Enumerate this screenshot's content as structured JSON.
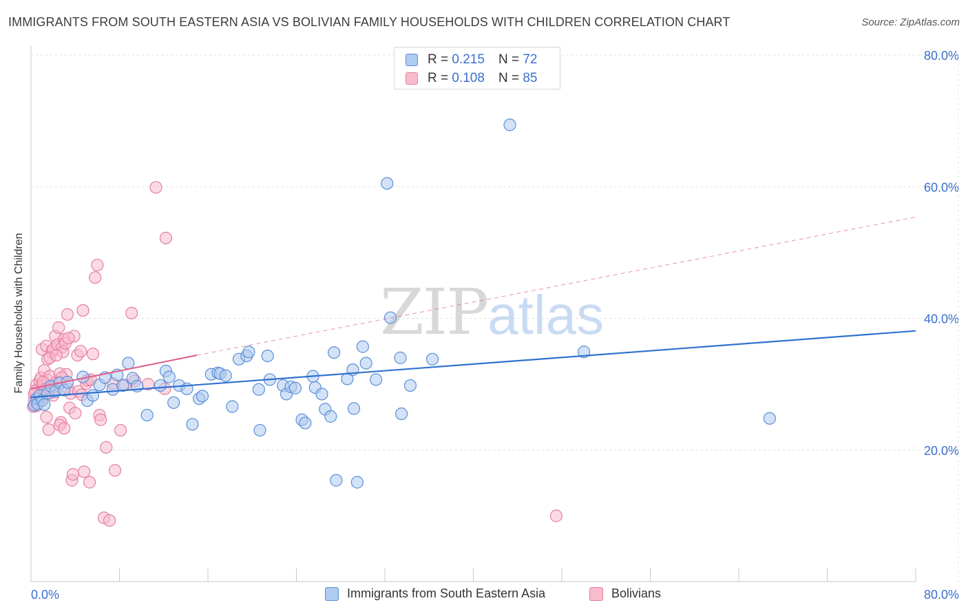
{
  "title": "IMMIGRANTS FROM SOUTH EASTERN ASIA VS BOLIVIAN FAMILY HOUSEHOLDS WITH CHILDREN CORRELATION CHART",
  "source": "Source: ZipAtlas.com",
  "watermark": {
    "zip": "ZIP",
    "atlas": "atlas"
  },
  "legend": {
    "r_label": "R =",
    "n_label": "N =",
    "rows": [
      {
        "r": "0.215",
        "n": "72"
      },
      {
        "r": "0.108",
        "n": "85"
      }
    ]
  },
  "colors": {
    "blue_fill": "#aecbf0",
    "blue_stroke": "#5b8fd6",
    "blue_line": "#2f72d0",
    "pink_fill": "#f8bccd",
    "pink_stroke": "#e57fa0",
    "pink_line": "#e0628e",
    "grid": "#dcdcdc",
    "tick_label": "#3a6fcf"
  },
  "chart_data": {
    "type": "scatter",
    "title": "IMMIGRANTS FROM SOUTH EASTERN ASIA VS BOLIVIAN FAMILY HOUSEHOLDS WITH CHILDREN CORRELATION CHART",
    "xlabel": "",
    "ylabel": "Family Households with Children",
    "xlim": [
      0,
      80
    ],
    "ylim": [
      0,
      80
    ],
    "x_tick_labels": [
      "0.0%",
      "80.0%"
    ],
    "y_ticks": [
      20,
      40,
      60,
      80
    ],
    "y_tick_labels": [
      "20.0%",
      "40.0%",
      "60.0%",
      "80.0%"
    ],
    "grid": true,
    "legend_position": "top-center",
    "series": [
      {
        "name": "Immigrants from South Eastern Asia",
        "color": "#5b8fd6",
        "R": 0.215,
        "N": 72,
        "trend": {
          "x0": 0,
          "y0": 28.0,
          "x1": 80,
          "y1": 38.1
        },
        "points": [
          [
            0.3,
            26.8
          ],
          [
            0.5,
            27.8
          ],
          [
            0.6,
            27.0
          ],
          [
            0.8,
            28.3
          ],
          [
            1.0,
            27.5
          ],
          [
            1.2,
            26.9
          ],
          [
            1.5,
            28.6
          ],
          [
            1.8,
            29.7
          ],
          [
            2.2,
            28.9
          ],
          [
            2.6,
            30.2
          ],
          [
            3.0,
            29.1
          ],
          [
            3.3,
            30.3
          ],
          [
            4.7,
            31.1
          ],
          [
            5.1,
            27.5
          ],
          [
            5.6,
            28.3
          ],
          [
            6.2,
            29.9
          ],
          [
            6.7,
            31.0
          ],
          [
            7.4,
            29.2
          ],
          [
            7.8,
            31.4
          ],
          [
            8.3,
            29.8
          ],
          [
            8.8,
            33.2
          ],
          [
            9.2,
            30.9
          ],
          [
            9.6,
            29.7
          ],
          [
            10.5,
            25.3
          ],
          [
            11.7,
            29.8
          ],
          [
            12.2,
            32.0
          ],
          [
            12.5,
            31.1
          ],
          [
            12.9,
            27.2
          ],
          [
            13.4,
            29.8
          ],
          [
            14.1,
            29.3
          ],
          [
            14.6,
            23.9
          ],
          [
            15.2,
            27.8
          ],
          [
            15.5,
            28.2
          ],
          [
            16.3,
            31.5
          ],
          [
            16.9,
            31.7
          ],
          [
            17.1,
            31.6
          ],
          [
            17.6,
            31.3
          ],
          [
            18.2,
            26.6
          ],
          [
            18.8,
            33.8
          ],
          [
            19.5,
            34.3
          ],
          [
            19.7,
            34.9
          ],
          [
            20.6,
            29.2
          ],
          [
            20.7,
            23.0
          ],
          [
            21.4,
            34.3
          ],
          [
            21.6,
            30.7
          ],
          [
            22.8,
            29.8
          ],
          [
            23.1,
            28.5
          ],
          [
            23.5,
            29.6
          ],
          [
            23.9,
            29.4
          ],
          [
            24.5,
            24.6
          ],
          [
            24.8,
            24.1
          ],
          [
            25.5,
            31.2
          ],
          [
            25.7,
            29.5
          ],
          [
            26.3,
            28.5
          ],
          [
            26.6,
            26.2
          ],
          [
            27.1,
            25.1
          ],
          [
            27.4,
            34.8
          ],
          [
            27.6,
            15.4
          ],
          [
            28.6,
            30.8
          ],
          [
            29.1,
            32.2
          ],
          [
            29.2,
            26.3
          ],
          [
            29.5,
            15.1
          ],
          [
            30.0,
            35.7
          ],
          [
            30.3,
            33.2
          ],
          [
            31.2,
            30.7
          ],
          [
            32.2,
            60.5
          ],
          [
            32.5,
            40.1
          ],
          [
            33.4,
            34.0
          ],
          [
            33.5,
            25.5
          ],
          [
            34.3,
            29.8
          ],
          [
            36.3,
            33.8
          ],
          [
            43.3,
            69.4
          ],
          [
            50.0,
            34.9
          ],
          [
            66.8,
            24.8
          ]
        ]
      },
      {
        "name": "Bolivians",
        "color": "#e57fa0",
        "R": 0.108,
        "N": 85,
        "trend": {
          "x0": 0,
          "y0": 29.3,
          "x1": 15.0,
          "y1": 34.4
        },
        "trend_dashed": {
          "x0": 15.0,
          "y0": 34.4,
          "x1": 80,
          "y1": 55.4
        },
        "points": [
          [
            0.2,
            26.6
          ],
          [
            0.3,
            27.6
          ],
          [
            0.4,
            28.7
          ],
          [
            0.5,
            29.9
          ],
          [
            0.5,
            26.7
          ],
          [
            0.6,
            28.0
          ],
          [
            0.7,
            29.3
          ],
          [
            0.8,
            30.5
          ],
          [
            0.9,
            31.0
          ],
          [
            1.0,
            27.6
          ],
          [
            1.0,
            35.3
          ],
          [
            1.1,
            29.8
          ],
          [
            1.2,
            32.1
          ],
          [
            1.3,
            28.5
          ],
          [
            1.4,
            35.8
          ],
          [
            1.5,
            30.6
          ],
          [
            1.5,
            33.8
          ],
          [
            1.6,
            23.1
          ],
          [
            1.7,
            31.2
          ],
          [
            1.8,
            28.7
          ],
          [
            1.9,
            34.9
          ],
          [
            2.0,
            35.3
          ],
          [
            2.1,
            29.5
          ],
          [
            2.2,
            37.3
          ],
          [
            2.3,
            30.3
          ],
          [
            2.4,
            36.0
          ],
          [
            2.5,
            38.6
          ],
          [
            2.6,
            31.6
          ],
          [
            2.7,
            24.2
          ],
          [
            2.8,
            35.6
          ],
          [
            2.9,
            34.9
          ],
          [
            3.0,
            36.8
          ],
          [
            3.1,
            36.2
          ],
          [
            3.2,
            31.5
          ],
          [
            3.3,
            40.6
          ],
          [
            3.4,
            29.2
          ],
          [
            3.5,
            26.4
          ],
          [
            3.6,
            28.6
          ],
          [
            3.7,
            15.4
          ],
          [
            3.8,
            16.3
          ],
          [
            3.9,
            37.3
          ],
          [
            4.0,
            25.6
          ],
          [
            4.2,
            34.4
          ],
          [
            4.3,
            28.9
          ],
          [
            4.5,
            35.0
          ],
          [
            4.6,
            28.4
          ],
          [
            4.7,
            41.2
          ],
          [
            4.8,
            16.7
          ],
          [
            5.0,
            30.1
          ],
          [
            5.1,
            30.6
          ],
          [
            5.3,
            15.1
          ],
          [
            5.4,
            30.7
          ],
          [
            5.6,
            34.6
          ],
          [
            5.8,
            46.2
          ],
          [
            6.0,
            48.1
          ],
          [
            6.2,
            25.3
          ],
          [
            6.3,
            24.6
          ],
          [
            6.6,
            9.7
          ],
          [
            6.8,
            20.4
          ],
          [
            7.1,
            9.3
          ],
          [
            7.4,
            30.1
          ],
          [
            7.6,
            16.9
          ],
          [
            8.1,
            23.0
          ],
          [
            8.5,
            29.9
          ],
          [
            9.1,
            40.8
          ],
          [
            9.4,
            30.5
          ],
          [
            10.6,
            30.0
          ],
          [
            11.3,
            59.9
          ],
          [
            12.1,
            29.3
          ],
          [
            12.2,
            52.2
          ],
          [
            0.4,
            29.0
          ],
          [
            0.6,
            27.0
          ],
          [
            0.9,
            28.1
          ],
          [
            1.1,
            30.3
          ],
          [
            1.3,
            29.2
          ],
          [
            1.7,
            34.0
          ],
          [
            2.0,
            28.3
          ],
          [
            2.3,
            34.4
          ],
          [
            2.6,
            23.8
          ],
          [
            3.0,
            23.3
          ],
          [
            0.3,
            28.5
          ],
          [
            3.4,
            37.0
          ],
          [
            1.4,
            25.0
          ],
          [
            2.8,
            31.0
          ],
          [
            47.5,
            10.0
          ]
        ]
      }
    ]
  },
  "bottom_legend": [
    {
      "label": "Immigrants from South Eastern Asia"
    },
    {
      "label": "Bolivians"
    }
  ]
}
